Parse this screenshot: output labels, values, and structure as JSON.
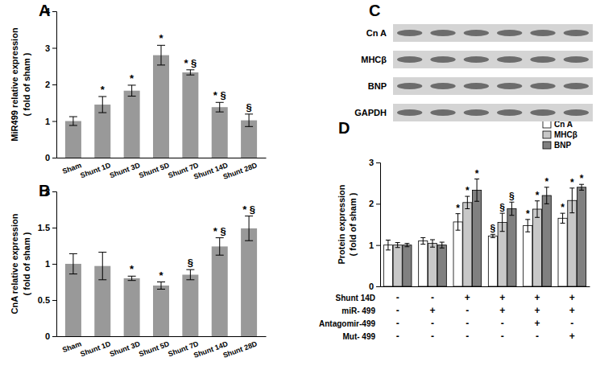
{
  "chart_data": [
    {
      "type": "bar",
      "panel": "A",
      "ylabel": [
        "MiR499 relative expression",
        "( fold of sham )"
      ],
      "categories": [
        "Sham",
        "Shunt 1D",
        "Shunt 3D",
        "Shunt 5D",
        "Shunt 7D",
        "Shunt 14D",
        "Shunt 28D"
      ],
      "values": [
        1.0,
        1.45,
        1.83,
        2.8,
        2.33,
        1.38,
        1.02
      ],
      "errors": [
        0.12,
        0.22,
        0.15,
        0.27,
        0.07,
        0.13,
        0.17
      ],
      "annotations": [
        null,
        "*",
        "*",
        "*",
        "* §",
        "* §",
        "§"
      ],
      "color": "#999999",
      "ylim": [
        0,
        4
      ],
      "yticks": [
        0,
        1,
        2,
        3,
        4
      ],
      "grid": false
    },
    {
      "type": "bar",
      "panel": "B",
      "ylabel": [
        "CnA relative expression",
        "( fold of sham )"
      ],
      "categories": [
        "Sham",
        "Shunt 1D",
        "Shunt 3D",
        "Shunt 5D",
        "Shunt 7D",
        "Shunt 14D",
        "Shunt 28D"
      ],
      "values": [
        1.0,
        0.97,
        0.8,
        0.7,
        0.85,
        1.24,
        1.49
      ],
      "errors": [
        0.14,
        0.19,
        0.03,
        0.05,
        0.07,
        0.12,
        0.17
      ],
      "annotations": [
        null,
        null,
        "*",
        "*",
        "§",
        "* §",
        "* §"
      ],
      "color": "#999999",
      "ylim": [
        0,
        2
      ],
      "yticks": [
        0,
        0.5,
        1,
        1.5,
        2
      ],
      "grid": false
    },
    {
      "type": "bar",
      "panel": "D",
      "ylabel": [
        "Protein expression",
        "( fold of sham )"
      ],
      "categories": [
        null,
        null,
        null,
        null,
        null,
        null
      ],
      "series": [
        {
          "name": "Cn A",
          "color": "#ffffff",
          "values": [
            1.0,
            1.1,
            1.56,
            1.22,
            1.47,
            1.65
          ],
          "errors": [
            0.12,
            0.08,
            0.2,
            0.04,
            0.15,
            0.12
          ],
          "annotations": [
            null,
            null,
            "*",
            "§",
            "*",
            "*"
          ]
        },
        {
          "name": "MHCβ",
          "color": "#c8c8c8",
          "values": [
            1.0,
            1.04,
            2.03,
            1.55,
            1.87,
            2.08
          ],
          "errors": [
            0.06,
            0.09,
            0.15,
            0.22,
            0.2,
            0.3
          ],
          "annotations": [
            null,
            null,
            "*",
            "§",
            "*",
            "*"
          ]
        },
        {
          "name": "BNP",
          "color": "#808080",
          "values": [
            1.0,
            1.0,
            2.33,
            1.88,
            2.2,
            2.4
          ],
          "errors": [
            0.04,
            0.07,
            0.27,
            0.16,
            0.2,
            0.07
          ],
          "annotations": [
            null,
            null,
            "*",
            "§",
            "*",
            "*"
          ]
        }
      ],
      "conditions": [
        {
          "label": "Shunt 14D",
          "values": [
            "-",
            "-",
            "+",
            "+",
            "+",
            "+"
          ]
        },
        {
          "label": "miR- 499",
          "values": [
            "-",
            "+",
            "-",
            "+",
            "+",
            "+"
          ]
        },
        {
          "label": "Antagomir-499",
          "values": [
            "-",
            "-",
            "-",
            "-",
            "+",
            "-"
          ]
        },
        {
          "label": "Mut- 499",
          "values": [
            "-",
            "-",
            "-",
            "-",
            "-",
            "+"
          ]
        }
      ],
      "legend": "top-right",
      "ylim": [
        0,
        3
      ],
      "yticks": [
        0,
        1,
        2,
        3
      ],
      "grid": false
    }
  ],
  "blot": {
    "panel": "C",
    "rows": [
      "Cn A",
      "MHCβ",
      "BNP",
      "GAPDH"
    ]
  }
}
